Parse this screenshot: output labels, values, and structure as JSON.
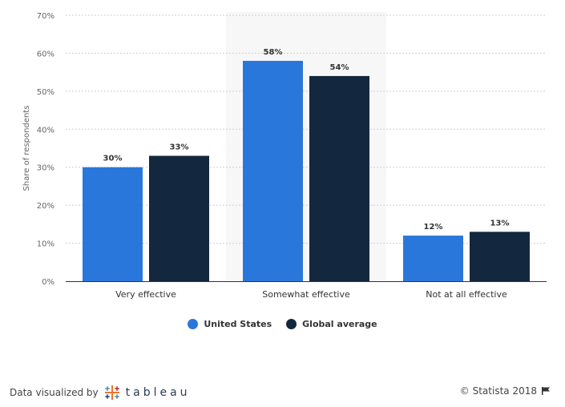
{
  "chart_data": {
    "type": "bar",
    "ylabel": "Share of respondents",
    "ylim": [
      0,
      70
    ],
    "yticks": [
      0,
      10,
      20,
      30,
      40,
      50,
      60,
      70
    ],
    "ytick_suffix": "%",
    "categories": [
      "Very effective",
      "Somewhat effective",
      "Not at all effective"
    ],
    "highlighted_category": "Somewhat effective",
    "series": [
      {
        "name": "United States",
        "color": "#2a77db",
        "values": [
          30,
          58,
          12
        ]
      },
      {
        "name": "Global average",
        "color": "#13273f",
        "values": [
          33,
          54,
          13
        ]
      }
    ],
    "grid": true,
    "legend_position": "bottom-center"
  },
  "footer": {
    "attribution": "Data visualized by",
    "brand": "tableau",
    "copyright": "© Statista 2018"
  },
  "icons": {
    "tableau_logo": "tableau-logo-icon",
    "flag": "flag-icon"
  }
}
